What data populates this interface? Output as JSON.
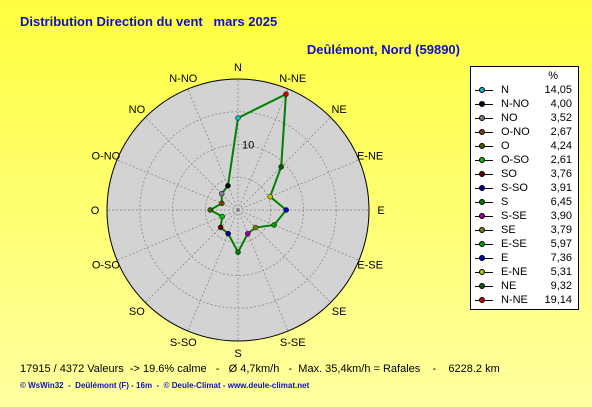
{
  "title": "Distribution Direction du vent   mars 2025",
  "subtitle": "Deûlémont, Nord (59890)",
  "stats": "17915 / 4372 Valeurs  -> 19.6% calme   -   Ø 4,7km/h   -  Max. 35,4km/h = Rafales    -    6228.2 km",
  "footer": "© WsWin32  -  Deûlémont (F) - 16m  -  © Deule-Climat - www.deule-climat.net",
  "chart_data": {
    "type": "radar",
    "unit": "%",
    "ring_label": "10",
    "rmax": 20,
    "directions": [
      "N",
      "N-NE",
      "NE",
      "E-NE",
      "E",
      "E-SE",
      "SE",
      "S-SE",
      "S",
      "S-SO",
      "SO",
      "O-SO",
      "O",
      "O-NO",
      "NO",
      "N-NO"
    ],
    "values": [
      14.05,
      19.14,
      9.32,
      5.31,
      7.36,
      5.97,
      3.79,
      3.9,
      6.45,
      3.91,
      3.76,
      2.61,
      4.24,
      2.67,
      3.52,
      4.0
    ],
    "colors": [
      "#00c0c0",
      "#d00000",
      "#006000",
      "#c0c000",
      "#0000c0",
      "#00a000",
      "#808000",
      "#a000a0",
      "#008000",
      "#000080",
      "#600000",
      "#00c000",
      "#406000",
      "#804000",
      "#808080",
      "#000000"
    ],
    "legend": [
      {
        "label": "N",
        "value": "14,05",
        "color": "#00c0c0"
      },
      {
        "label": "N-NO",
        "value": "4,00",
        "color": "#000000"
      },
      {
        "label": "NO",
        "value": "3,52",
        "color": "#808080"
      },
      {
        "label": "O-NO",
        "value": "2,67",
        "color": "#804000"
      },
      {
        "label": "O",
        "value": "4,24",
        "color": "#406000"
      },
      {
        "label": "O-SO",
        "value": "2,61",
        "color": "#00c000"
      },
      {
        "label": "SO",
        "value": "3,76",
        "color": "#600000"
      },
      {
        "label": "S-SO",
        "value": "3,91",
        "color": "#000080"
      },
      {
        "label": "S",
        "value": "6,45",
        "color": "#008000"
      },
      {
        "label": "S-SE",
        "value": "3,90",
        "color": "#a000a0"
      },
      {
        "label": "SE",
        "value": "3,79",
        "color": "#808000"
      },
      {
        "label": "E-SE",
        "value": "5,97",
        "color": "#00a000"
      },
      {
        "label": "E",
        "value": "7,36",
        "color": "#0000c0"
      },
      {
        "label": "E-NE",
        "value": "5,31",
        "color": "#c0c000"
      },
      {
        "label": "NE",
        "value": "9,32",
        "color": "#006000"
      },
      {
        "label": "N-NE",
        "value": "19,14",
        "color": "#d00000"
      }
    ],
    "line_color": "#008000",
    "disc_color": "#d3d3d3"
  }
}
